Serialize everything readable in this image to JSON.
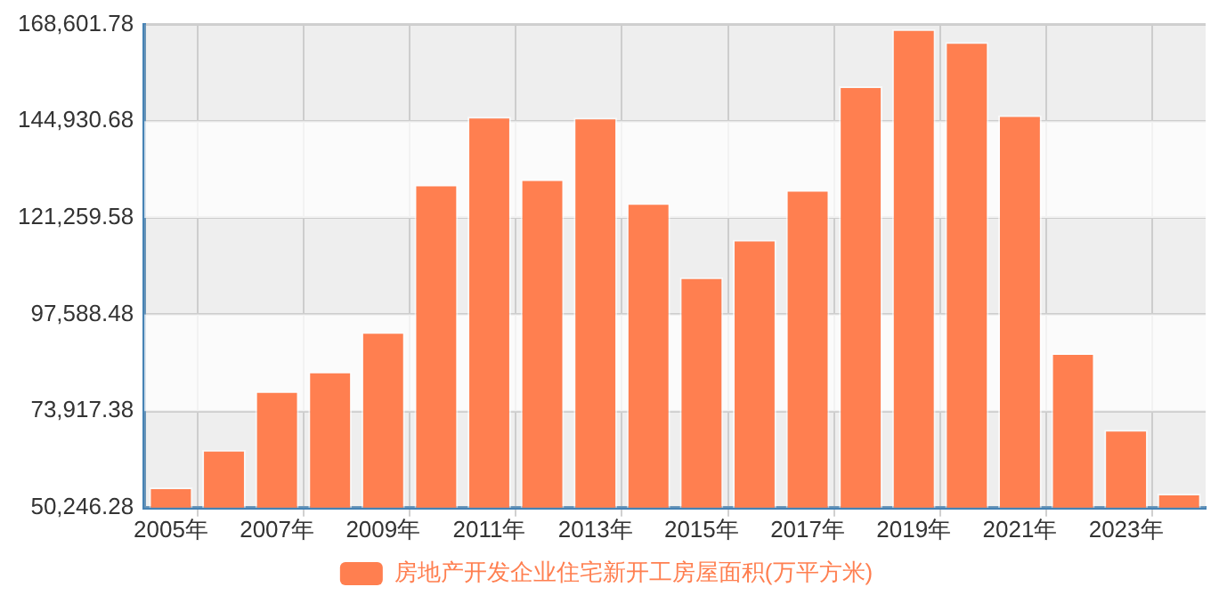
{
  "chart_data": {
    "type": "bar",
    "categories": [
      "2005年",
      null,
      "2007年",
      null,
      "2009年",
      null,
      "2011年",
      null,
      "2013年",
      null,
      "2015年",
      null,
      "2017年",
      null,
      "2019年",
      null,
      "2021年",
      null,
      "2023年",
      null
    ],
    "series": [
      {
        "name": "房地产开发企业住宅新开工房屋面积(万平方米)",
        "color": "#ff7f50",
        "values": [
          55200,
          64400,
          78800,
          83600,
          93300,
          129400,
          146000,
          130700,
          145800,
          124900,
          106700,
          115900,
          128100,
          153500,
          167500,
          164300,
          146400,
          88100,
          69300,
          53700
        ]
      }
    ],
    "ylim": [
      50246.28,
      168601.78
    ],
    "yticks": [
      {
        "value": 50246.28,
        "label": "50,246.28"
      },
      {
        "value": 73917.38,
        "label": "73,917.38"
      },
      {
        "value": 97588.48,
        "label": "97,588.48"
      },
      {
        "value": 121259.58,
        "label": "121,259.58"
      },
      {
        "value": 144930.68,
        "label": "144,930.68"
      },
      {
        "value": 168601.78,
        "label": "168,601.78"
      }
    ],
    "grid": true,
    "legend": "bottom"
  }
}
